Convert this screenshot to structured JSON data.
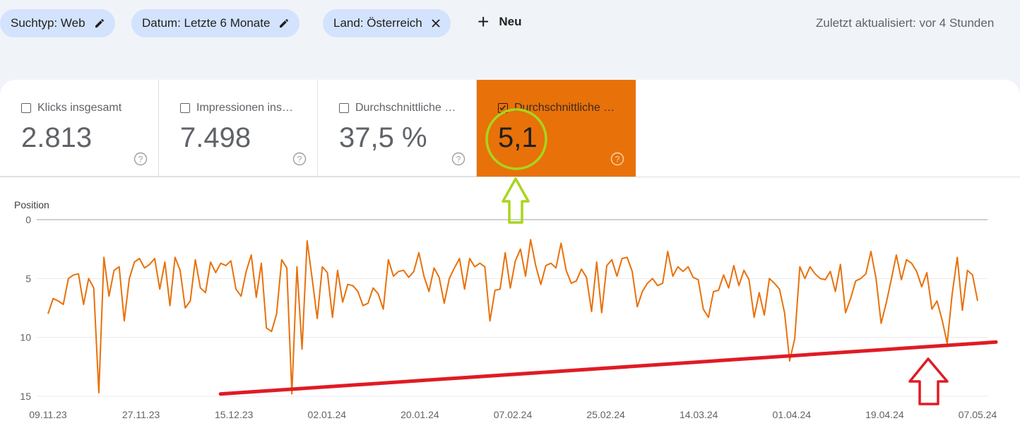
{
  "filters": {
    "chips": [
      {
        "label": "Suchtyp: Web",
        "icon": "pencil-icon"
      },
      {
        "label": "Datum: Letzte 6 Monate",
        "icon": "pencil-icon"
      },
      {
        "label": "Land: Österreich",
        "icon": "close-icon"
      }
    ],
    "new_label": "Neu",
    "updated_text": "Zuletzt aktualisiert: vor 4 Stunden"
  },
  "metrics": [
    {
      "label": "Klicks insgesamt",
      "value": "2.813",
      "checked": false
    },
    {
      "label": "Impressionen ins…",
      "value": "7.498",
      "checked": false
    },
    {
      "label": "Durchschnittliche …",
      "value": "37,5 %",
      "checked": false
    },
    {
      "label": "Durchschnittliche …",
      "value": "5,1",
      "checked": true
    }
  ],
  "colors": {
    "accent": "#e8710a",
    "line": "#e8710a",
    "annotation_circle": "#a8d51c",
    "annotation_arrow_green": "#a8d51c",
    "annotation_trend": "#e01b24",
    "chip_bg": "#d3e3fd"
  },
  "chart_data": {
    "type": "line",
    "ylabel": "Position",
    "y_inverted": true,
    "ylim": [
      0,
      15
    ],
    "y_ticks": [
      0,
      5,
      10,
      15
    ],
    "x_tick_labels": [
      "09.11.23",
      "27.11.23",
      "15.12.23",
      "02.01.24",
      "20.01.24",
      "07.02.24",
      "25.02.24",
      "14.03.24",
      "01.04.24",
      "19.04.24",
      "07.05.24"
    ],
    "x_start": "09.11.23",
    "x_end": "07.05.24",
    "grid": true,
    "series": [
      {
        "values": [
          8.0,
          6.7,
          6.9,
          7.2,
          5.0,
          4.7,
          4.6,
          7.2,
          5.0,
          5.8,
          14.7,
          3.2,
          6.5,
          4.3,
          4.0,
          8.6,
          5.0,
          3.6,
          3.3,
          4.1,
          3.8,
          3.3,
          5.9,
          3.6,
          7.3,
          3.2,
          4.3,
          7.5,
          6.9,
          3.4,
          5.8,
          6.2,
          3.6,
          4.5,
          3.7,
          3.9,
          3.5,
          5.9,
          6.5,
          4.4,
          3.0,
          6.6,
          3.7,
          9.2,
          9.5,
          8.0,
          3.4,
          4.1,
          14.8,
          4.0,
          11.0,
          1.8,
          5.0,
          8.4,
          4.0,
          4.5,
          8.3,
          4.3,
          7.0,
          5.5,
          5.6,
          6.1,
          7.3,
          7.1,
          5.8,
          6.3,
          7.6,
          3.4,
          4.8,
          4.4,
          4.3,
          4.9,
          4.4,
          2.8,
          4.8,
          6.1,
          4.1,
          4.9,
          7.1,
          5.0,
          4.1,
          3.3,
          5.9,
          3.3,
          4.0,
          3.7,
          4.0,
          8.6,
          6.0,
          5.9,
          2.8,
          5.8,
          3.5,
          2.5,
          4.8,
          1.7,
          3.9,
          5.5,
          3.9,
          3.7,
          4.1,
          2.0,
          4.3,
          5.4,
          5.2,
          4.2,
          4.9,
          7.8,
          3.6,
          7.9,
          3.9,
          3.4,
          4.8,
          3.3,
          3.2,
          4.4,
          7.4,
          6.1,
          5.4,
          5.0,
          5.6,
          5.4,
          2.7,
          4.8,
          4.0,
          4.4,
          4.0,
          4.9,
          5.1,
          7.6,
          8.3,
          6.1,
          6.0,
          4.7,
          5.8,
          3.9,
          5.6,
          4.3,
          5.1,
          8.3,
          6.2,
          8.1,
          5.0,
          5.4,
          5.9,
          7.9,
          12.0,
          10.1,
          4.0,
          5.0,
          4.0,
          4.6,
          5.0,
          5.1,
          4.4,
          6.1,
          3.8,
          7.9,
          6.7,
          5.2,
          5.0,
          4.6,
          2.7,
          5.0,
          8.8,
          7.1,
          5.1,
          3.0,
          5.1,
          3.4,
          3.7,
          4.4,
          5.7,
          4.5,
          7.6,
          6.9,
          8.5,
          10.5,
          6.3,
          3.2,
          7.7,
          4.3,
          4.7,
          6.9
        ]
      }
    ],
    "annotations": {
      "trend_line": {
        "from": [
          "15.12.23",
          14.8
        ],
        "to": [
          "07.05.24",
          10.4
        ]
      }
    }
  }
}
